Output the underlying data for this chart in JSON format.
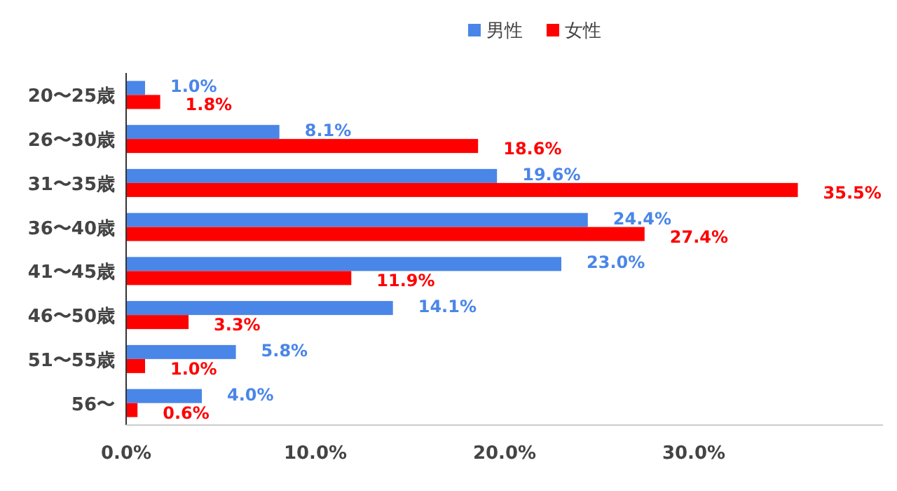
{
  "chart_data": {
    "type": "bar",
    "orientation": "horizontal",
    "categories": [
      "20〜25歳",
      "26〜30歳",
      "31〜35歳",
      "36〜40歳",
      "41〜45歳",
      "46〜50歳",
      "51〜55歳",
      "56〜"
    ],
    "series": [
      {
        "name": "男性",
        "color": "#4a86e8",
        "values": [
          1.0,
          8.1,
          19.6,
          24.4,
          23.0,
          14.1,
          5.8,
          4.0
        ],
        "value_labels": [
          "1.0%",
          "8.1%",
          "19.6%",
          "24.4%",
          "23.0%",
          "14.1%",
          "5.8%",
          "4.0%"
        ]
      },
      {
        "name": "女性",
        "color": "#ff0000",
        "values": [
          1.8,
          18.6,
          35.5,
          27.4,
          11.9,
          3.3,
          1.0,
          0.6
        ],
        "value_labels": [
          "1.8%",
          "18.6%",
          "35.5%",
          "27.4%",
          "11.9%",
          "3.3%",
          "1.0%",
          "0.6%"
        ]
      }
    ],
    "xlim": [
      0,
      40
    ],
    "xticks": [
      {
        "value": 0,
        "label": "0.0%"
      },
      {
        "value": 10,
        "label": "10.0%"
      },
      {
        "value": 20,
        "label": "20.0%"
      },
      {
        "value": 30,
        "label": "30.0%"
      }
    ],
    "legend": "top",
    "grid": false
  }
}
